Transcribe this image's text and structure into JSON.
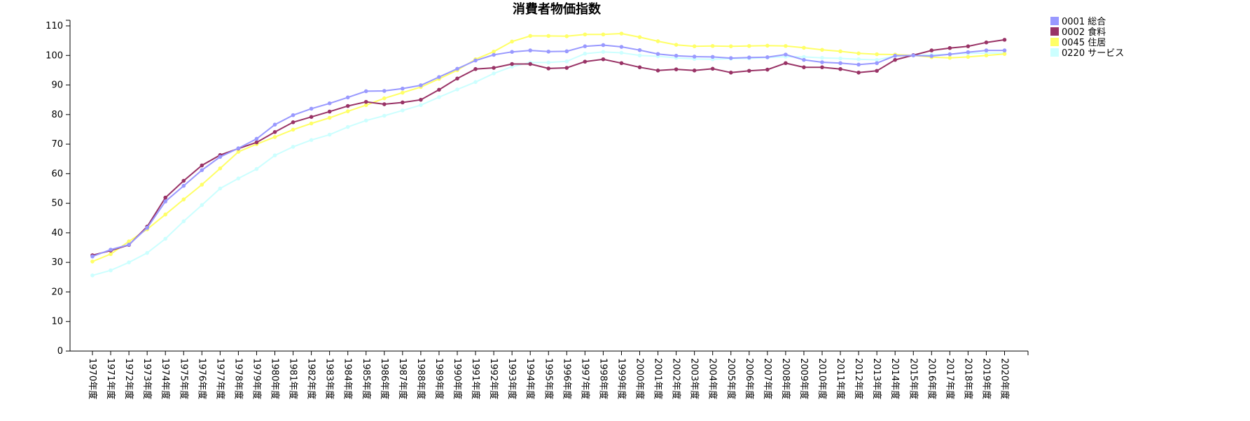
{
  "chart_data": {
    "type": "line",
    "title": "消費者物価指数",
    "xlabel": "",
    "ylabel": "",
    "ylim": [
      0,
      110
    ],
    "y_ticks": [
      0,
      10,
      20,
      30,
      40,
      50,
      60,
      70,
      80,
      90,
      100,
      110
    ],
    "grid": false,
    "legend_position": "top-right",
    "categories": [
      "1970年度",
      "1971年度",
      "1972年度",
      "1973年度",
      "1974年度",
      "1975年度",
      "1976年度",
      "1977年度",
      "1978年度",
      "1979年度",
      "1980年度",
      "1981年度",
      "1982年度",
      "1983年度",
      "1984年度",
      "1985年度",
      "1986年度",
      "1987年度",
      "1988年度",
      "1989年度",
      "1990年度",
      "1991年度",
      "1992年度",
      "1993年度",
      "1994年度",
      "1995年度",
      "1996年度",
      "1997年度",
      "1998年度",
      "1999年度",
      "2000年度",
      "2001年度",
      "2002年度",
      "2003年度",
      "2004年度",
      "2005年度",
      "2006年度",
      "2007年度",
      "2008年度",
      "2009年度",
      "2010年度",
      "2011年度",
      "2012年度",
      "2013年度",
      "2014年度",
      "2015年度",
      "2016年度",
      "2017年度",
      "2018年度",
      "2019年度",
      "2020年度"
    ],
    "series": [
      {
        "name": "0001 総合",
        "color": "#9999ff",
        "values": [
          32.0,
          34.3,
          36.0,
          41.7,
          50.6,
          55.9,
          61.2,
          65.7,
          68.6,
          71.8,
          76.6,
          79.8,
          82.0,
          83.8,
          85.8,
          87.9,
          88.0,
          88.8,
          89.9,
          92.7,
          95.5,
          98.3,
          100.2,
          101.2,
          101.7,
          101.3,
          101.4,
          103.1,
          103.5,
          102.9,
          101.8,
          100.5,
          99.9,
          99.6,
          99.5,
          99.1,
          99.3,
          99.4,
          100.3,
          98.5,
          97.7,
          97.4,
          96.9,
          97.4,
          99.9,
          100.0,
          99.8,
          100.4,
          101.1,
          101.7,
          101.7
        ]
      },
      {
        "name": "0002 食料",
        "color": "#993366",
        "values": [
          32.4,
          34.0,
          35.9,
          42.1,
          51.9,
          57.6,
          62.8,
          66.3,
          68.5,
          70.6,
          74.1,
          77.4,
          79.2,
          81.0,
          82.9,
          84.3,
          83.5,
          84.1,
          85.0,
          88.4,
          92.2,
          95.4,
          95.8,
          97.1,
          97.1,
          95.6,
          95.8,
          97.9,
          98.7,
          97.4,
          96.0,
          94.9,
          95.3,
          94.9,
          95.5,
          94.2,
          94.8,
          95.2,
          97.4,
          96.0,
          96.0,
          95.4,
          94.2,
          94.8,
          98.5,
          100.1,
          101.7,
          102.5,
          103.1,
          104.4,
          105.3
        ]
      },
      {
        "name": "0045 住居",
        "color": "#ffff66",
        "values": [
          30.3,
          32.8,
          37.1,
          41.2,
          46.2,
          51.3,
          56.3,
          61.8,
          67.4,
          70.0,
          72.4,
          74.9,
          77.0,
          78.9,
          81.1,
          83.2,
          85.5,
          87.4,
          89.3,
          92.1,
          95.0,
          98.7,
          101.3,
          104.7,
          106.6,
          106.6,
          106.5,
          107.1,
          107.1,
          107.4,
          106.2,
          104.8,
          103.6,
          103.1,
          103.2,
          103.1,
          103.2,
          103.3,
          103.2,
          102.6,
          101.9,
          101.4,
          100.7,
          100.4,
          100.3,
          100.0,
          99.4,
          99.2,
          99.5,
          100.0,
          100.5
        ]
      },
      {
        "name": "0220 サービス",
        "color": "#ccffff",
        "values": [
          25.6,
          27.3,
          30.0,
          33.2,
          38.0,
          43.9,
          49.4,
          55.0,
          58.4,
          61.6,
          66.2,
          69.1,
          71.4,
          73.2,
          75.8,
          78.0,
          79.6,
          81.4,
          83.2,
          85.9,
          88.5,
          91.0,
          93.9,
          96.2,
          97.6,
          97.6,
          98.0,
          100.6,
          101.2,
          100.9,
          100.0,
          99.7,
          99.2,
          98.8,
          98.7,
          98.9,
          99.0,
          99.3,
          99.6,
          99.5,
          99.2,
          99.0,
          98.7,
          98.5,
          99.8,
          100.0,
          100.2,
          100.4,
          100.7,
          100.8,
          100.8
        ]
      }
    ]
  }
}
